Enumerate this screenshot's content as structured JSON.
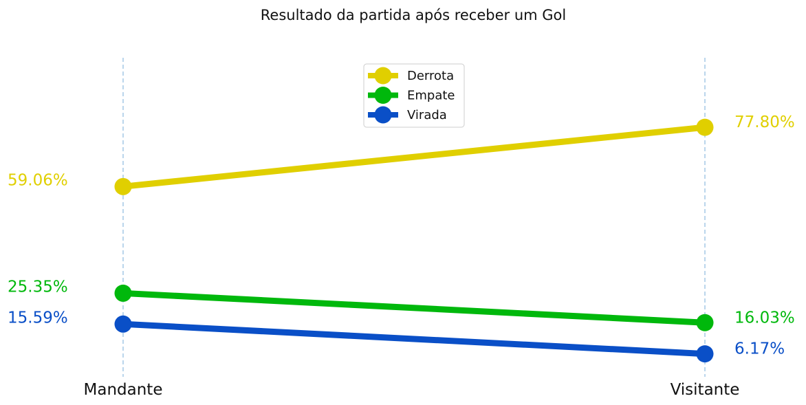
{
  "chart_data": {
    "type": "line",
    "title": "Resultado da partida após receber um Gol",
    "categories": [
      "Mandante",
      "Visitante"
    ],
    "xlabel": "",
    "ylabel": "",
    "grid": "vertical dashed lines at categories",
    "legend_position": "top-center",
    "series": [
      {
        "name": "Derrota",
        "color": "#e0cf00",
        "values": [
          59.06,
          77.8
        ],
        "labels": [
          "59.06%",
          "77.80%"
        ]
      },
      {
        "name": "Empate",
        "color": "#00b80c",
        "values": [
          25.35,
          16.03
        ],
        "labels": [
          "25.35%",
          "16.03%"
        ]
      },
      {
        "name": "Virada",
        "color": "#0a4fc7",
        "values": [
          15.59,
          6.17
        ],
        "labels": [
          "15.59%",
          "6.17%"
        ]
      }
    ],
    "grid_color": "#a9cbe8"
  }
}
